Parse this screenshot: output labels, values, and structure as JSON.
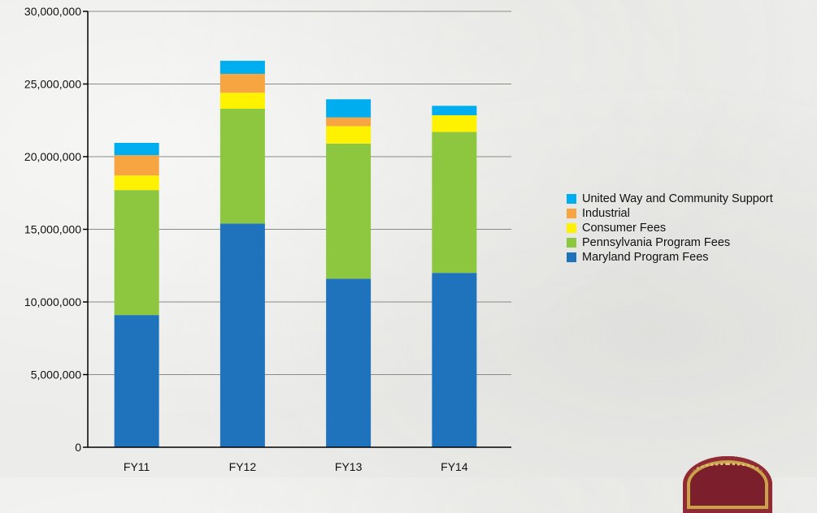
{
  "chart_data": {
    "type": "bar",
    "stacked": true,
    "categories": [
      "FY11",
      "FY12",
      "FY13",
      "FY14"
    ],
    "series": [
      {
        "name": "Maryland Program Fees",
        "color": "#1f73bd",
        "values": [
          9100000,
          15400000,
          11600000,
          12000000
        ]
      },
      {
        "name": "Pennsylvania Program Fees",
        "color": "#8dc63f",
        "values": [
          8600000,
          7900000,
          9300000,
          9700000
        ]
      },
      {
        "name": "Consumer Fees",
        "color": "#fff200",
        "values": [
          1000000,
          1100000,
          1200000,
          1150000
        ]
      },
      {
        "name": "Industrial",
        "color": "#f7a541",
        "values": [
          1400000,
          1300000,
          600000,
          0
        ]
      },
      {
        "name": "United Way and Community Support",
        "color": "#00aeef",
        "values": [
          850000,
          900000,
          1250000,
          650000
        ]
      }
    ],
    "yticks": [
      "30,000,000",
      "25,000,000",
      "20,000,000",
      "15,000,000",
      "10,000,000",
      "5,000,000",
      "0"
    ],
    "ylim": [
      0,
      30000000
    ],
    "grid": true,
    "legend_position": "right"
  },
  "legend": {
    "items": [
      {
        "label": "United Way and Community Support",
        "color": "#00aeef"
      },
      {
        "label": "Industrial",
        "color": "#f7a541"
      },
      {
        "label": "Consumer Fees",
        "color": "#fff200"
      },
      {
        "label": "Pennsylvania Program Fees",
        "color": "#8dc63f"
      },
      {
        "label": "Maryland Program Fees",
        "color": "#1f73bd"
      }
    ]
  }
}
